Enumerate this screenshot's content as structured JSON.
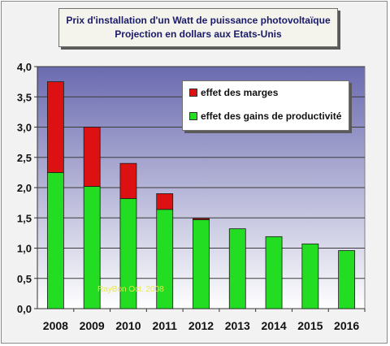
{
  "chart_data": {
    "type": "bar",
    "stacked": true,
    "title_line1": "Prix d'installation d'un Watt de puissance photovoltaïque",
    "title_line2": "Projection en dollars aux Etats-Unis",
    "categories": [
      "2008",
      "2009",
      "2010",
      "2011",
      "2012",
      "2013",
      "2014",
      "2015",
      "2016"
    ],
    "series": [
      {
        "name": "effet des gains de productivité",
        "color": "#22dd22",
        "values": [
          2.25,
          2.02,
          1.82,
          1.64,
          1.47,
          1.32,
          1.19,
          1.07,
          0.96
        ]
      },
      {
        "name": "effet des marges",
        "color": "#dd1111",
        "values": [
          1.5,
          0.98,
          0.58,
          0.26,
          0.02,
          0,
          0,
          0,
          0
        ]
      }
    ],
    "ylim": [
      0,
      4.0
    ],
    "yticks": [
      "0,0",
      "0,5",
      "1,0",
      "1,5",
      "2,0",
      "2,5",
      "3,0",
      "3,5",
      "4,0"
    ],
    "grid": true,
    "legend_position": "top-right",
    "watermark": "RayBon Oct. 2008"
  }
}
